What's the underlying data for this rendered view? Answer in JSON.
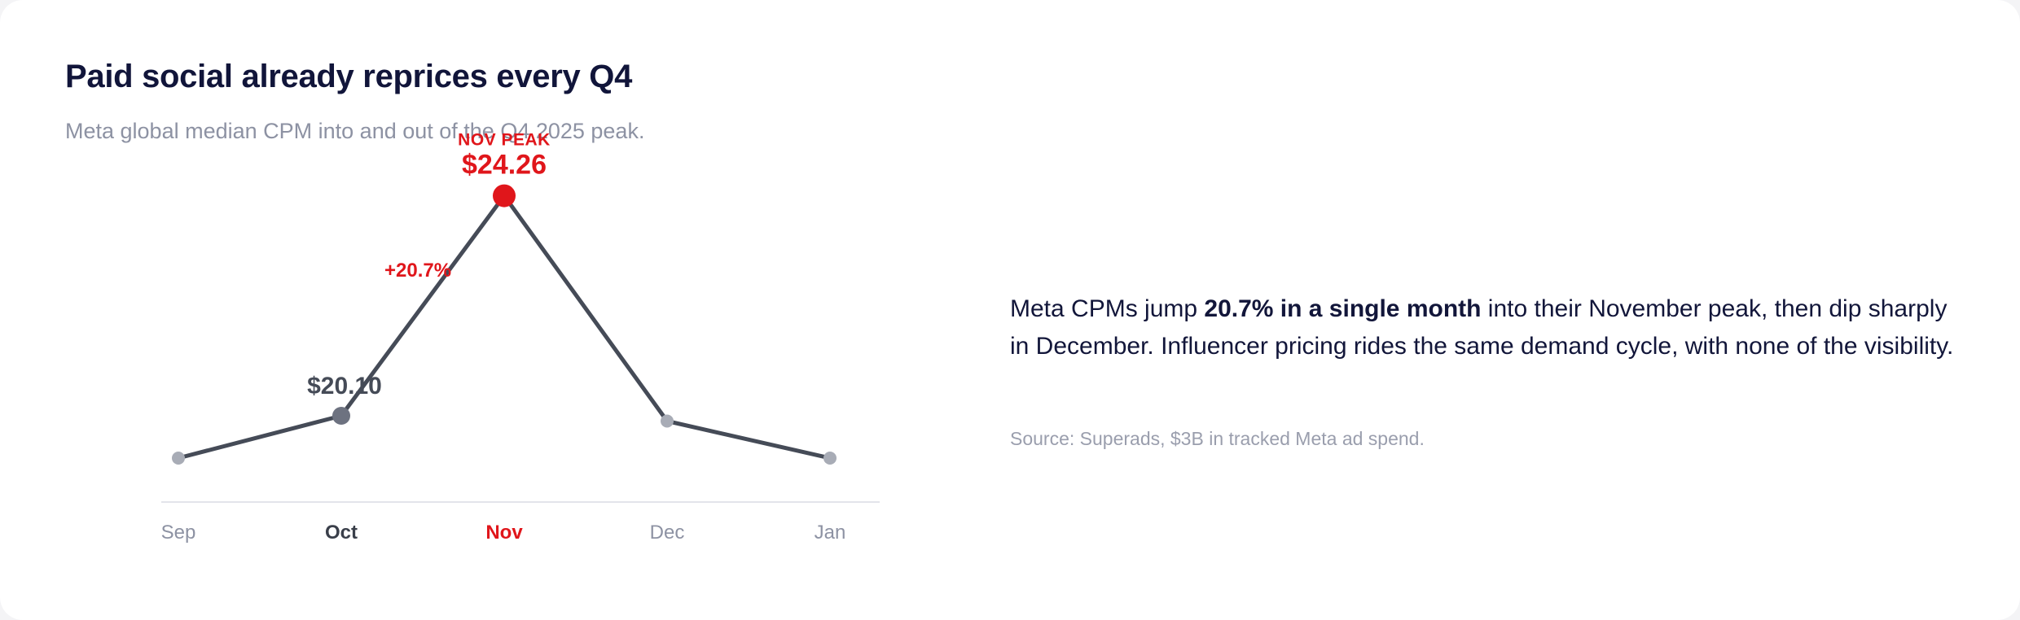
{
  "header": {
    "title": "Paid social already reprices every Q4",
    "subtitle": "Meta global median CPM into and out of the Q4 2025 peak."
  },
  "chart_data": {
    "type": "line",
    "categories": [
      "Sep",
      "Oct",
      "Nov",
      "Dec",
      "Jan"
    ],
    "values": [
      19.3,
      20.1,
      24.26,
      20.0,
      19.3
    ],
    "ylim": [
      17.5,
      25.5
    ],
    "highlight": {
      "oct": {
        "index": 1,
        "label": "$20.10"
      },
      "nov": {
        "index": 2,
        "label": "$24.26",
        "tag": "NOV PEAK"
      },
      "change": "+20.7%"
    },
    "grid": false,
    "legend": "none",
    "colors": {
      "line": "#454b57",
      "peak": "#e0161b",
      "oct_dot": "#6d7280",
      "dot": "#a8acb6",
      "axis_text": "#8d92a3",
      "axis_line": "#e3e4ea"
    }
  },
  "commentary": {
    "pre": "Meta CPMs jump ",
    "bold": "20.7% in a single month",
    "post": " into their November peak, then dip sharply in December. Influencer pricing rides the same demand cycle, with none of the visibility.",
    "source": "Source: Superads, $3B in tracked Meta ad spend."
  }
}
